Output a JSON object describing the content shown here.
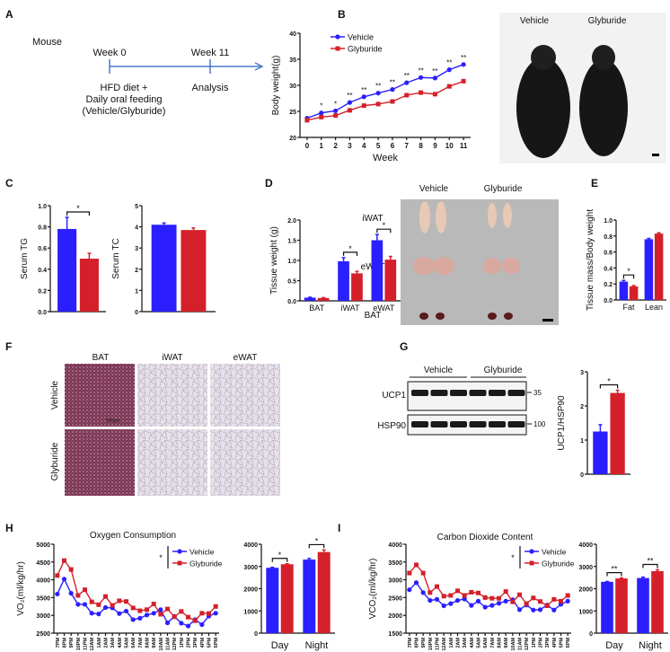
{
  "colors": {
    "vehicle": "#2b1fff",
    "glyburide": "#d4202a",
    "timeline": "#4a78c8"
  },
  "panel_labels": {
    "A": "A",
    "B": "B",
    "C": "C",
    "D": "D",
    "E": "E",
    "F": "F",
    "G": "G",
    "H": "H",
    "I": "I"
  },
  "panel_a": {
    "species": "Mouse",
    "week_start": "Week 0",
    "week_end": "Week 11",
    "treatment_line1": "HFD diet +",
    "treatment_line2": "Daily oral feeding",
    "treatment_line3": "(Vehicle/Glyburide)",
    "end_label": "Analysis"
  },
  "mouse_photo": {
    "label_vehicle": "Vehicle",
    "label_glyburide": "Glyburide"
  },
  "tissue_photo": {
    "label_vehicle": "Vehicle",
    "label_glyburide": "Glyburide",
    "rows": [
      "iWAT",
      "eWAT",
      "BAT"
    ]
  },
  "histology": {
    "columns": [
      "BAT",
      "iWAT",
      "eWAT"
    ],
    "rows": [
      "Vehicle",
      "Glyburide"
    ],
    "scale_bar": "100μm"
  },
  "western_blot": {
    "group_vehicle": "Vehicle",
    "group_glyburide": "Glyburide",
    "proteins": [
      "UCP1",
      "HSP90"
    ],
    "markers": [
      "35",
      "100"
    ]
  },
  "chart_data": {
    "B": {
      "type": "line",
      "xlabel": "Week",
      "ylabel": "Body weight(g)",
      "ylim": [
        20,
        40
      ],
      "yticks": [
        20,
        25,
        30,
        35,
        40
      ],
      "categories": [
        "0",
        "1",
        "2",
        "3",
        "4",
        "5",
        "6",
        "7",
        "8",
        "9",
        "10",
        "11"
      ],
      "series": [
        {
          "name": "Vehicle",
          "values": [
            23.7,
            24.7,
            25.1,
            26.7,
            27.8,
            28.5,
            29.2,
            30.5,
            31.5,
            31.4,
            33.0,
            34.0
          ]
        },
        {
          "name": "Glyburide",
          "values": [
            23.3,
            23.9,
            24.2,
            25.2,
            26.1,
            26.4,
            26.9,
            28.1,
            28.6,
            28.3,
            29.8,
            30.8
          ]
        }
      ],
      "significance": [
        "",
        "*",
        "*",
        "**",
        "**",
        "**",
        "**",
        "**",
        "**",
        "**",
        "**",
        "**"
      ],
      "legend": "top-left"
    },
    "C1": {
      "type": "bar",
      "ylabel": "Serum TG",
      "ylim": [
        0,
        1.0
      ],
      "yticks": [
        "0.0",
        "0.2",
        "0.4",
        "0.6",
        "0.8",
        "1.0"
      ],
      "categories": [
        ""
      ],
      "series": [
        {
          "name": "Vehicle",
          "values": [
            0.78
          ],
          "sem": [
            0.11
          ]
        },
        {
          "name": "Glyburide",
          "values": [
            0.5
          ],
          "sem": [
            0.05
          ]
        }
      ],
      "significance": [
        "*"
      ]
    },
    "C2": {
      "type": "bar",
      "ylabel": "Serum TC",
      "ylim": [
        0,
        5
      ],
      "yticks": [
        "0",
        "1",
        "2",
        "3",
        "4",
        "5"
      ],
      "categories": [
        ""
      ],
      "series": [
        {
          "name": "Vehicle",
          "values": [
            4.1
          ],
          "sem": [
            0.08
          ]
        },
        {
          "name": "Glyburide",
          "values": [
            3.85
          ],
          "sem": [
            0.1
          ]
        }
      ],
      "significance": [
        ""
      ]
    },
    "D": {
      "type": "bar",
      "ylabel": "Tissue weight (g)",
      "ylim": [
        0,
        2.0
      ],
      "yticks": [
        "0.0",
        "0.5",
        "1.0",
        "1.5",
        "2.0"
      ],
      "categories": [
        "BAT",
        "iWAT",
        "eWAT"
      ],
      "series": [
        {
          "name": "Vehicle",
          "values": [
            0.08,
            0.98,
            1.5
          ],
          "sem": [
            0.01,
            0.09,
            0.14
          ]
        },
        {
          "name": "Glyburide",
          "values": [
            0.07,
            0.68,
            1.02
          ],
          "sem": [
            0.01,
            0.05,
            0.08
          ]
        }
      ],
      "significance": [
        "",
        "*",
        "*"
      ]
    },
    "E": {
      "type": "bar",
      "ylabel": "Tissue mass/Body weight",
      "ylim": [
        0,
        1.0
      ],
      "yticks": [
        "0.0",
        "0.2",
        "0.4",
        "0.6",
        "0.8",
        "1.0"
      ],
      "categories": [
        "Fat",
        "Lean"
      ],
      "series": [
        {
          "name": "Vehicle",
          "values": [
            0.23,
            0.76
          ],
          "sem": [
            0.015,
            0.01
          ]
        },
        {
          "name": "Glyburide",
          "values": [
            0.17,
            0.83
          ],
          "sem": [
            0.01,
            0.01
          ]
        }
      ],
      "significance": [
        "*",
        ""
      ]
    },
    "G": {
      "type": "bar",
      "ylabel": "UCP1/HSP90",
      "ylim": [
        0,
        3
      ],
      "yticks": [
        "0",
        "1",
        "2",
        "3"
      ],
      "categories": [
        ""
      ],
      "series": [
        {
          "name": "Vehicle",
          "values": [
            1.25
          ],
          "sem": [
            0.2
          ]
        },
        {
          "name": "Glyburide",
          "values": [
            2.38
          ],
          "sem": [
            0.08
          ]
        }
      ],
      "significance": [
        "*"
      ]
    },
    "H1": {
      "type": "line",
      "title": "Oxygen Consumption",
      "ylabel": "VO₂(ml/kg/hr)",
      "ylim": [
        2500,
        5000
      ],
      "yticks": [
        2500,
        3000,
        3500,
        4000,
        4500,
        5000
      ],
      "categories": [
        "7PM",
        "8PM",
        "9PM",
        "10PM",
        "11PM",
        "12AM",
        "1AM",
        "2AM",
        "3AM",
        "4AM",
        "5AM",
        "6AM",
        "7AM",
        "8AM",
        "9AM",
        "10AM",
        "11AM",
        "12PM",
        "1PM",
        "2PM",
        "3PM",
        "4PM",
        "5PM",
        "6PM"
      ],
      "series": [
        {
          "name": "Vehicle",
          "values": [
            3600,
            4020,
            3620,
            3310,
            3310,
            3060,
            3040,
            3220,
            3210,
            3050,
            3120,
            2880,
            2920,
            3010,
            3060,
            3160,
            2790,
            2970,
            2780,
            2700,
            2880,
            2740,
            2980,
            3060
          ]
        },
        {
          "name": "Glyburide",
          "values": [
            4120,
            4540,
            4290,
            3560,
            3720,
            3380,
            3300,
            3530,
            3280,
            3410,
            3390,
            3210,
            3130,
            3160,
            3320,
            3030,
            3180,
            2960,
            3110,
            2950,
            2850,
            3060,
            3050,
            3250
          ]
        }
      ],
      "overall_significance": "*",
      "legend": "top-right"
    },
    "H2": {
      "type": "bar",
      "ylim": [
        0,
        4000
      ],
      "yticks": [
        "0",
        "1000",
        "2000",
        "3000",
        "4000"
      ],
      "categories": [
        "Day",
        "Night"
      ],
      "series": [
        {
          "name": "Vehicle",
          "values": [
            2940,
            3310
          ],
          "sem": [
            20,
            50
          ]
        },
        {
          "name": "Glyburide",
          "values": [
            3100,
            3650
          ],
          "sem": [
            20,
            90
          ]
        }
      ],
      "significance": [
        "*",
        "*"
      ]
    },
    "I1": {
      "type": "line",
      "title": "Carbon Dioxide Content",
      "ylabel": "VCO₂(ml/kg/hr)",
      "ylim": [
        1500,
        4000
      ],
      "yticks": [
        1500,
        2000,
        2500,
        3000,
        3500,
        4000
      ],
      "categories": [
        "7PM",
        "8PM",
        "9PM",
        "10PM",
        "11PM",
        "12AM",
        "1AM",
        "2AM",
        "3AM",
        "4AM",
        "5AM",
        "6AM",
        "7AM",
        "8AM",
        "9AM",
        "10AM",
        "11AM",
        "12PM",
        "1PM",
        "2PM",
        "3PM",
        "4PM",
        "5PM",
        "6PM"
      ],
      "series": [
        {
          "name": "Vehicle",
          "values": [
            2720,
            2920,
            2640,
            2420,
            2450,
            2270,
            2330,
            2420,
            2460,
            2280,
            2400,
            2230,
            2280,
            2340,
            2400,
            2440,
            2160,
            2290,
            2150,
            2160,
            2290,
            2150,
            2310,
            2400
          ]
        },
        {
          "name": "Glyburide",
          "values": [
            3190,
            3420,
            3190,
            2640,
            2810,
            2540,
            2560,
            2690,
            2560,
            2650,
            2630,
            2500,
            2480,
            2480,
            2670,
            2380,
            2580,
            2330,
            2490,
            2390,
            2270,
            2450,
            2400,
            2560
          ]
        }
      ],
      "overall_significance": "*",
      "legend": "top-right"
    },
    "I2": {
      "type": "bar",
      "ylim": [
        0,
        4000
      ],
      "yticks": [
        "0",
        "1000",
        "2000",
        "3000",
        "4000"
      ],
      "categories": [
        "Day",
        "Night"
      ],
      "series": [
        {
          "name": "Vehicle",
          "values": [
            2310,
            2480
          ],
          "sem": [
            15,
            40
          ]
        },
        {
          "name": "Glyburide",
          "values": [
            2460,
            2790
          ],
          "sem": [
            20,
            60
          ]
        }
      ],
      "significance": [
        "**",
        "**"
      ]
    }
  }
}
